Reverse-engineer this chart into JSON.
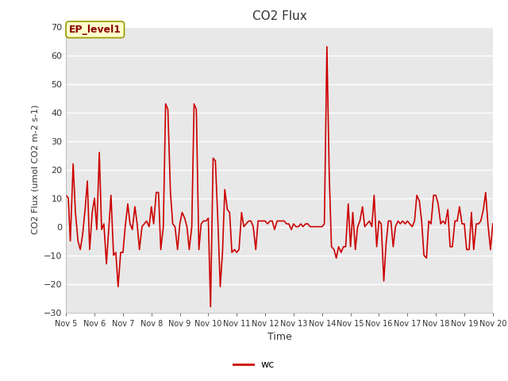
{
  "title": "CO2 Flux",
  "xlabel": "Time",
  "ylabel": "CO2 Flux (umol CO2 m-2 s-1)",
  "ylim": [
    -30,
    70
  ],
  "yticks": [
    -30,
    -20,
    -10,
    0,
    10,
    20,
    30,
    40,
    50,
    60,
    70
  ],
  "line_color": "#cc0000",
  "line_width": 1.2,
  "fig_bg_color": "#ffffff",
  "plot_bg_color": "#e8e8e8",
  "legend_label": "wc",
  "annotation_text": "EP_level1",
  "x_tick_labels": [
    "Nov 5",
    "Nov 6",
    "Nov 7",
    "Nov 8",
    "Nov 9",
    "Nov 10",
    "Nov 11",
    "Nov 12",
    "Nov 13",
    "Nov 14",
    "Nov 15",
    "Nov 16",
    "Nov 17",
    "Nov 18",
    "Nov 19",
    "Nov 20"
  ],
  "x_values": [
    5.0,
    5.08,
    5.15,
    5.25,
    5.33,
    5.42,
    5.5,
    5.58,
    5.67,
    5.75,
    5.83,
    5.92,
    6.0,
    6.08,
    6.17,
    6.25,
    6.33,
    6.42,
    6.5,
    6.58,
    6.67,
    6.75,
    6.83,
    6.92,
    7.0,
    7.08,
    7.17,
    7.25,
    7.33,
    7.42,
    7.5,
    7.58,
    7.67,
    7.75,
    7.83,
    7.92,
    8.0,
    8.08,
    8.17,
    8.25,
    8.33,
    8.42,
    8.5,
    8.58,
    8.67,
    8.75,
    8.83,
    8.92,
    9.0,
    9.08,
    9.17,
    9.25,
    9.33,
    9.42,
    9.5,
    9.58,
    9.67,
    9.75,
    9.83,
    9.92,
    10.0,
    10.08,
    10.17,
    10.25,
    10.33,
    10.42,
    10.5,
    10.58,
    10.67,
    10.75,
    10.83,
    10.92,
    11.0,
    11.08,
    11.17,
    11.25,
    11.33,
    11.42,
    11.5,
    11.58,
    11.67,
    11.75,
    11.83,
    11.92,
    12.0,
    12.08,
    12.17,
    12.25,
    12.33,
    12.42,
    12.5,
    12.58,
    12.67,
    12.75,
    12.83,
    12.92,
    13.0,
    13.08,
    13.17,
    13.25,
    13.33,
    13.42,
    13.5,
    13.58,
    13.67,
    13.75,
    13.83,
    13.92,
    14.0,
    14.08,
    14.17,
    14.25,
    14.33,
    14.42,
    14.5,
    14.58,
    14.67,
    14.75,
    14.83,
    14.92,
    15.0,
    15.08,
    15.17,
    15.25,
    15.33,
    15.42,
    15.5,
    15.58,
    15.67,
    15.75,
    15.83,
    15.92,
    16.0,
    16.08,
    16.17,
    16.25,
    16.33,
    16.42,
    16.5,
    16.58,
    16.67,
    16.75,
    16.83,
    16.92,
    17.0,
    17.08,
    17.17,
    17.25,
    17.33,
    17.42,
    17.5,
    17.58,
    17.67,
    17.75,
    17.83,
    17.92,
    18.0,
    18.08,
    18.17,
    18.25,
    18.33,
    18.42,
    18.5,
    18.58,
    18.67,
    18.75,
    18.83,
    18.92,
    19.0,
    19.08,
    19.17,
    19.25,
    19.33,
    19.42,
    19.5,
    19.58,
    19.67,
    19.75,
    19.83,
    19.92,
    20.0
  ],
  "y_values": [
    11,
    10,
    -5,
    22,
    5,
    -5,
    -8,
    -3,
    6,
    16,
    -8,
    5,
    10,
    -1,
    26,
    -1,
    1,
    -13,
    -1,
    11,
    -10,
    -9,
    -21,
    -9,
    -9,
    0,
    8,
    1,
    -1,
    7,
    1,
    -8,
    0,
    1,
    2,
    0,
    7,
    1,
    12,
    12,
    -8,
    0,
    43,
    41,
    12,
    1,
    0,
    -8,
    1,
    5,
    3,
    0,
    -8,
    0,
    43,
    41,
    -8,
    1,
    2,
    2,
    3,
    -28,
    24,
    23,
    4,
    -21,
    -9,
    13,
    6,
    5,
    -9,
    -8,
    -9,
    -8,
    5,
    0,
    1,
    2,
    2,
    0,
    -8,
    2,
    2,
    2,
    2,
    1,
    2,
    2,
    -1,
    2,
    2,
    2,
    2,
    1,
    1,
    -1,
    1,
    0,
    0,
    1,
    0,
    1,
    1,
    0,
    0,
    0,
    0,
    0,
    0,
    1,
    63,
    19,
    -7,
    -8,
    -11,
    -7,
    -9,
    -7,
    -7,
    8,
    -7,
    5,
    -8,
    0,
    2,
    7,
    0,
    1,
    2,
    0,
    11,
    -7,
    2,
    1,
    -19,
    -6,
    2,
    2,
    -7,
    0,
    2,
    1,
    2,
    1,
    2,
    1,
    0,
    2,
    11,
    9,
    2,
    -10,
    -11,
    2,
    1,
    11,
    11,
    8,
    1,
    2,
    1,
    6,
    -7,
    -7,
    2,
    2,
    7,
    1,
    1,
    -8,
    -8,
    5,
    -8,
    1,
    1,
    2,
    6,
    12,
    1,
    -8,
    1
  ]
}
